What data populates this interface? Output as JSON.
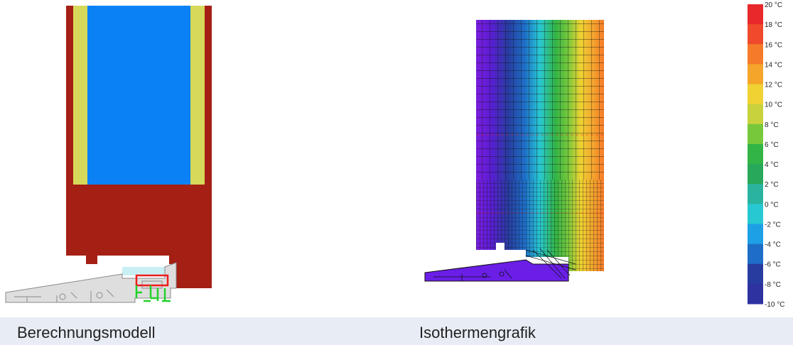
{
  "captions": {
    "left": "Berechnungsmodell",
    "right": "Isothermengrafik"
  },
  "colors": {
    "frame_wood": "#a41f14",
    "insulation": "#d6d95a",
    "glass_fill": "#0a82f5",
    "profile": "#e0e0e0",
    "caption_bg": "#e8ecf4"
  },
  "scale": {
    "unit": "°C",
    "labels": [
      "20 °C",
      "18 °C",
      "16 °C",
      "14 °C",
      "12 °C",
      "10 °C",
      "8 °C",
      "6 °C",
      "4 °C",
      "2 °C",
      "0 °C",
      "-2 °C",
      "-4 °C",
      "-6 °C",
      "-8 °C",
      "-10 °C"
    ],
    "colors": [
      "#e8282a",
      "#f04a2c",
      "#f57b2a",
      "#f5a52a",
      "#f0d232",
      "#c8d23c",
      "#78c83c",
      "#32b446",
      "#28a85a",
      "#2ab4a0",
      "#28c8d2",
      "#1ea0e6",
      "#1e6ec8",
      "#283ca0",
      "#2d32a0",
      "#3c32a0"
    ]
  }
}
